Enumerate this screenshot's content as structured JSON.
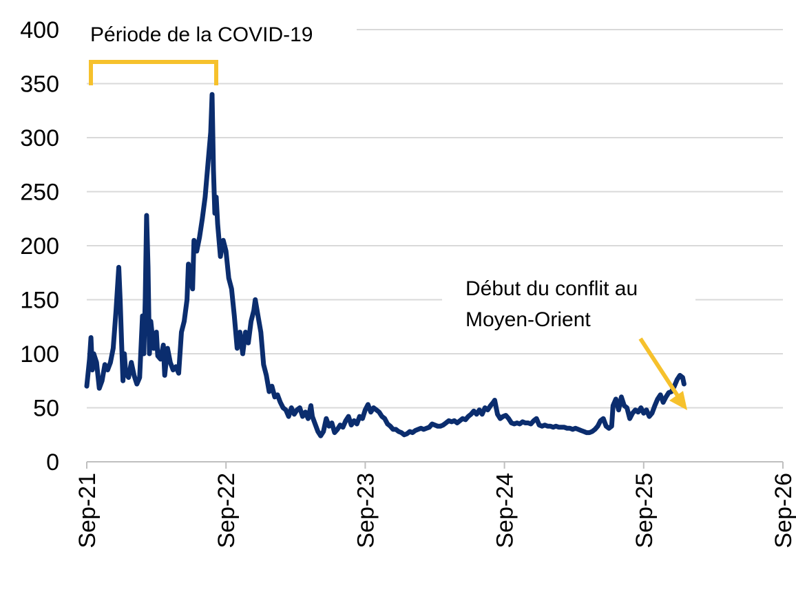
{
  "chart_data": {
    "type": "line",
    "title": "",
    "xlabel": "",
    "ylabel": "",
    "ylim": [
      0,
      400
    ],
    "yticks": [
      0,
      50,
      100,
      150,
      200,
      250,
      300,
      350,
      400
    ],
    "xticks": [
      "Sep-21",
      "Sep-22",
      "Sep-23",
      "Sep-24",
      "Sep-25",
      "Sep-26"
    ],
    "grid": true,
    "legend": "none",
    "series": [
      {
        "color": "#0b2d6e",
        "points": [
          [
            0.0,
            70
          ],
          [
            0.02,
            95
          ],
          [
            0.03,
            115
          ],
          [
            0.04,
            85
          ],
          [
            0.05,
            100
          ],
          [
            0.07,
            92
          ],
          [
            0.09,
            68
          ],
          [
            0.11,
            75
          ],
          [
            0.13,
            90
          ],
          [
            0.15,
            85
          ],
          [
            0.17,
            92
          ],
          [
            0.19,
            105
          ],
          [
            0.21,
            140
          ],
          [
            0.23,
            180
          ],
          [
            0.24,
            150
          ],
          [
            0.25,
            110
          ],
          [
            0.26,
            75
          ],
          [
            0.27,
            100
          ],
          [
            0.28,
            82
          ],
          [
            0.3,
            78
          ],
          [
            0.32,
            92
          ],
          [
            0.34,
            80
          ],
          [
            0.36,
            72
          ],
          [
            0.38,
            78
          ],
          [
            0.4,
            135
          ],
          [
            0.41,
            100
          ],
          [
            0.42,
            150
          ],
          [
            0.43,
            228
          ],
          [
            0.44,
            180
          ],
          [
            0.45,
            100
          ],
          [
            0.46,
            130
          ],
          [
            0.48,
            105
          ],
          [
            0.5,
            120
          ],
          [
            0.51,
            98
          ],
          [
            0.53,
            95
          ],
          [
            0.55,
            108
          ],
          [
            0.56,
            80
          ],
          [
            0.58,
            105
          ],
          [
            0.6,
            92
          ],
          [
            0.62,
            85
          ],
          [
            0.64,
            88
          ],
          [
            0.66,
            82
          ],
          [
            0.68,
            120
          ],
          [
            0.7,
            130
          ],
          [
            0.72,
            150
          ],
          [
            0.73,
            183
          ],
          [
            0.74,
            175
          ],
          [
            0.76,
            160
          ],
          [
            0.77,
            205
          ],
          [
            0.79,
            195
          ],
          [
            0.81,
            208
          ],
          [
            0.83,
            225
          ],
          [
            0.85,
            245
          ],
          [
            0.87,
            275
          ],
          [
            0.89,
            305
          ],
          [
            0.9,
            340
          ],
          [
            0.91,
            270
          ],
          [
            0.92,
            230
          ],
          [
            0.93,
            245
          ],
          [
            0.94,
            220
          ],
          [
            0.96,
            190
          ],
          [
            0.98,
            205
          ],
          [
            1.0,
            195
          ],
          [
            1.02,
            170
          ],
          [
            1.04,
            160
          ],
          [
            1.06,
            135
          ],
          [
            1.08,
            105
          ],
          [
            1.1,
            120
          ],
          [
            1.12,
            100
          ],
          [
            1.14,
            120
          ],
          [
            1.16,
            110
          ],
          [
            1.18,
            130
          ],
          [
            1.2,
            140
          ],
          [
            1.21,
            150
          ],
          [
            1.23,
            135
          ],
          [
            1.25,
            120
          ],
          [
            1.27,
            90
          ],
          [
            1.29,
            80
          ],
          [
            1.31,
            65
          ],
          [
            1.33,
            70
          ],
          [
            1.35,
            60
          ],
          [
            1.37,
            62
          ],
          [
            1.39,
            55
          ],
          [
            1.41,
            50
          ],
          [
            1.43,
            48
          ],
          [
            1.45,
            42
          ],
          [
            1.47,
            50
          ],
          [
            1.49,
            44
          ],
          [
            1.51,
            48
          ],
          [
            1.53,
            50
          ],
          [
            1.55,
            42
          ],
          [
            1.57,
            46
          ],
          [
            1.59,
            40
          ],
          [
            1.61,
            52
          ],
          [
            1.62,
            42
          ],
          [
            1.64,
            35
          ],
          [
            1.66,
            28
          ],
          [
            1.68,
            24
          ],
          [
            1.7,
            28
          ],
          [
            1.72,
            40
          ],
          [
            1.74,
            33
          ],
          [
            1.76,
            36
          ],
          [
            1.78,
            27
          ],
          [
            1.8,
            30
          ],
          [
            1.82,
            34
          ],
          [
            1.84,
            32
          ],
          [
            1.86,
            38
          ],
          [
            1.88,
            42
          ],
          [
            1.9,
            34
          ],
          [
            1.92,
            38
          ],
          [
            1.94,
            35
          ],
          [
            1.96,
            42
          ],
          [
            1.98,
            40
          ],
          [
            2.0,
            48
          ],
          [
            2.02,
            53
          ],
          [
            2.04,
            46
          ],
          [
            2.06,
            50
          ],
          [
            2.08,
            48
          ],
          [
            2.1,
            46
          ],
          [
            2.12,
            42
          ],
          [
            2.14,
            40
          ],
          [
            2.16,
            35
          ],
          [
            2.18,
            33
          ],
          [
            2.2,
            30
          ],
          [
            2.22,
            30
          ],
          [
            2.24,
            28
          ],
          [
            2.26,
            27
          ],
          [
            2.28,
            25
          ],
          [
            2.3,
            26
          ],
          [
            2.32,
            28
          ],
          [
            2.34,
            27
          ],
          [
            2.36,
            29
          ],
          [
            2.38,
            30
          ],
          [
            2.4,
            31
          ],
          [
            2.42,
            30
          ],
          [
            2.44,
            31
          ],
          [
            2.46,
            32
          ],
          [
            2.48,
            35
          ],
          [
            2.5,
            34
          ],
          [
            2.52,
            33
          ],
          [
            2.54,
            33
          ],
          [
            2.56,
            34
          ],
          [
            2.58,
            36
          ],
          [
            2.6,
            38
          ],
          [
            2.62,
            37
          ],
          [
            2.64,
            38
          ],
          [
            2.66,
            36
          ],
          [
            2.68,
            38
          ],
          [
            2.7,
            40
          ],
          [
            2.72,
            39
          ],
          [
            2.74,
            42
          ],
          [
            2.76,
            44
          ],
          [
            2.78,
            47
          ],
          [
            2.8,
            44
          ],
          [
            2.82,
            48
          ],
          [
            2.84,
            44
          ],
          [
            2.86,
            50
          ],
          [
            2.88,
            48
          ],
          [
            2.9,
            52
          ],
          [
            2.92,
            55
          ],
          [
            2.93,
            57
          ],
          [
            2.95,
            44
          ],
          [
            2.97,
            40
          ],
          [
            2.99,
            42
          ],
          [
            3.01,
            43
          ],
          [
            3.03,
            40
          ],
          [
            3.05,
            36
          ],
          [
            3.07,
            35
          ],
          [
            3.09,
            36
          ],
          [
            3.11,
            35
          ],
          [
            3.13,
            37
          ],
          [
            3.15,
            36
          ],
          [
            3.17,
            36
          ],
          [
            3.19,
            35
          ],
          [
            3.21,
            38
          ],
          [
            3.23,
            40
          ],
          [
            3.25,
            34
          ],
          [
            3.27,
            33
          ],
          [
            3.29,
            34
          ],
          [
            3.31,
            33
          ],
          [
            3.33,
            33
          ],
          [
            3.35,
            32
          ],
          [
            3.37,
            33
          ],
          [
            3.39,
            32
          ],
          [
            3.41,
            32
          ],
          [
            3.43,
            32
          ],
          [
            3.45,
            31
          ],
          [
            3.47,
            31
          ],
          [
            3.49,
            30
          ],
          [
            3.51,
            31
          ],
          [
            3.53,
            30
          ],
          [
            3.55,
            29
          ],
          [
            3.57,
            28
          ],
          [
            3.59,
            27
          ],
          [
            3.61,
            27
          ],
          [
            3.63,
            28
          ],
          [
            3.65,
            30
          ],
          [
            3.67,
            33
          ],
          [
            3.69,
            38
          ],
          [
            3.71,
            40
          ],
          [
            3.73,
            33
          ],
          [
            3.75,
            31
          ],
          [
            3.77,
            33
          ],
          [
            3.78,
            52
          ],
          [
            3.8,
            58
          ],
          [
            3.82,
            48
          ],
          [
            3.84,
            60
          ],
          [
            3.86,
            52
          ],
          [
            3.88,
            50
          ],
          [
            3.9,
            40
          ],
          [
            3.92,
            45
          ],
          [
            3.94,
            48
          ],
          [
            3.96,
            46
          ],
          [
            3.98,
            50
          ],
          [
            4.0,
            45
          ],
          [
            4.02,
            48
          ],
          [
            4.04,
            42
          ],
          [
            4.06,
            45
          ],
          [
            4.08,
            52
          ],
          [
            4.1,
            58
          ],
          [
            4.12,
            62
          ],
          [
            4.14,
            55
          ],
          [
            4.16,
            60
          ],
          [
            4.18,
            64
          ],
          [
            4.2,
            65
          ],
          [
            4.22,
            70
          ],
          [
            4.24,
            76
          ],
          [
            4.26,
            80
          ],
          [
            4.28,
            78
          ],
          [
            4.29,
            72
          ]
        ]
      }
    ],
    "annotations": {
      "covid_label": "Période de la COVID-19",
      "conflict_label_line1": "Début du conflit au",
      "conflict_label_line2": "Moyen-Orient"
    }
  }
}
